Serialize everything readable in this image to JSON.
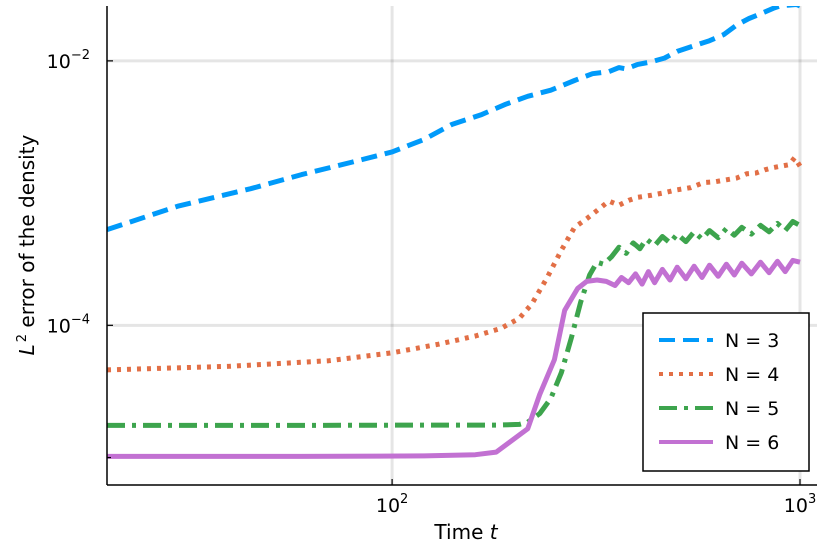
{
  "chart_data": {
    "type": "line",
    "xlabel": {
      "text": "Time ",
      "var": "t"
    },
    "ylabel": {
      "var": "L",
      "sup": "2",
      "text": " error of the density"
    },
    "xscale": "log",
    "yscale": "log",
    "xlim": [
      20,
      1000
    ],
    "ylim": [
      6.2e-06,
      0.026
    ],
    "grid": true,
    "legend_position": "bottom-right",
    "x_ticks": [
      {
        "value": 100,
        "base": "10",
        "exp": "2"
      },
      {
        "value": 1000,
        "base": "10",
        "exp": "3"
      }
    ],
    "y_ticks": [
      {
        "value": 0.0001,
        "base": "10",
        "exp": "−4"
      },
      {
        "value": 0.01,
        "base": "10",
        "exp": "−2"
      }
    ],
    "y_minor_ticks": [
      1e-05
    ],
    "series": [
      {
        "name": "N = 3",
        "color": "#009AFA",
        "style": "dashed",
        "points": [
          [
            20,
            0.00053
          ],
          [
            30,
            0.0008
          ],
          [
            45,
            0.00108
          ],
          [
            60,
            0.00138
          ],
          [
            80,
            0.00172
          ],
          [
            100,
            0.00205
          ],
          [
            120,
            0.00255
          ],
          [
            140,
            0.0033
          ],
          [
            165,
            0.0039
          ],
          [
            190,
            0.0047
          ],
          [
            215,
            0.0054
          ],
          [
            245,
            0.006
          ],
          [
            280,
            0.0071
          ],
          [
            310,
            0.008
          ],
          [
            340,
            0.0083
          ],
          [
            360,
            0.0089
          ],
          [
            375,
            0.0087
          ],
          [
            400,
            0.0094
          ],
          [
            430,
            0.0098
          ],
          [
            465,
            0.0105
          ],
          [
            500,
            0.0118
          ],
          [
            550,
            0.013
          ],
          [
            600,
            0.0142
          ],
          [
            650,
            0.0158
          ],
          [
            700,
            0.0187
          ],
          [
            750,
            0.0209
          ],
          [
            800,
            0.0227
          ],
          [
            860,
            0.025
          ],
          [
            900,
            0.0262
          ],
          [
            940,
            0.0264
          ],
          [
            980,
            0.0267
          ],
          [
            1000,
            0.026
          ]
        ]
      },
      {
        "name": "N = 4",
        "color": "#E26F46",
        "style": "dotted",
        "points": [
          [
            20,
            4.6e-05
          ],
          [
            40,
            4.9e-05
          ],
          [
            70,
            5.4e-05
          ],
          [
            100,
            6.2e-05
          ],
          [
            130,
            7.2e-05
          ],
          [
            160,
            8.3e-05
          ],
          [
            185,
            9.5e-05
          ],
          [
            205,
            0.000113
          ],
          [
            220,
            0.000145
          ],
          [
            240,
            0.00023
          ],
          [
            260,
            0.00037
          ],
          [
            280,
            0.00055
          ],
          [
            300,
            0.00064
          ],
          [
            320,
            0.00075
          ],
          [
            340,
            0.00087
          ],
          [
            360,
            0.00081
          ],
          [
            380,
            0.00088
          ],
          [
            400,
            0.00093
          ],
          [
            430,
            0.00096
          ],
          [
            460,
            0.001
          ],
          [
            500,
            0.00106
          ],
          [
            540,
            0.0011
          ],
          [
            580,
            0.0012
          ],
          [
            620,
            0.00122
          ],
          [
            660,
            0.00126
          ],
          [
            700,
            0.0013
          ],
          [
            740,
            0.0014
          ],
          [
            780,
            0.00142
          ],
          [
            820,
            0.0015
          ],
          [
            860,
            0.00156
          ],
          [
            900,
            0.0016
          ],
          [
            940,
            0.00164
          ],
          [
            970,
            0.00185
          ],
          [
            1000,
            0.0016
          ]
        ]
      },
      {
        "name": "N = 5",
        "color": "#3DA44D",
        "style": "dashdot",
        "points": [
          [
            20,
            1.75e-05
          ],
          [
            60,
            1.75e-05
          ],
          [
            120,
            1.76e-05
          ],
          [
            180,
            1.76e-05
          ],
          [
            205,
            1.78e-05
          ],
          [
            215,
            1.85e-05
          ],
          [
            230,
            2.15e-05
          ],
          [
            245,
            2.8e-05
          ],
          [
            260,
            4.4e-05
          ],
          [
            275,
            8e-05
          ],
          [
            290,
            0.00015
          ],
          [
            305,
            0.00024
          ],
          [
            318,
            0.0003
          ],
          [
            330,
            0.00029
          ],
          [
            345,
            0.00033
          ],
          [
            360,
            0.00039
          ],
          [
            375,
            0.00035
          ],
          [
            390,
            0.00042
          ],
          [
            405,
            0.00038
          ],
          [
            420,
            0.00045
          ],
          [
            440,
            0.0004
          ],
          [
            460,
            0.00047
          ],
          [
            480,
            0.00042
          ],
          [
            500,
            0.00049
          ],
          [
            525,
            0.00043
          ],
          [
            550,
            0.00051
          ],
          [
            575,
            0.00045
          ],
          [
            600,
            0.00052
          ],
          [
            630,
            0.00046
          ],
          [
            660,
            0.00054
          ],
          [
            690,
            0.00048
          ],
          [
            720,
            0.00055
          ],
          [
            760,
            0.00049
          ],
          [
            800,
            0.00057
          ],
          [
            840,
            0.00051
          ],
          [
            880,
            0.00059
          ],
          [
            920,
            0.00052
          ],
          [
            960,
            0.00061
          ],
          [
            1000,
            0.00057
          ]
        ]
      },
      {
        "name": "N = 6",
        "color": "#C271D2",
        "style": "solid",
        "points": [
          [
            20,
            1.02e-05
          ],
          [
            60,
            1.02e-05
          ],
          [
            120,
            1.03e-05
          ],
          [
            160,
            1.05e-05
          ],
          [
            180,
            1.1e-05
          ],
          [
            215,
            1.65e-05
          ],
          [
            230,
            3e-05
          ],
          [
            250,
            5.5e-05
          ],
          [
            265,
            0.00013
          ],
          [
            285,
            0.00019
          ],
          [
            300,
            0.000215
          ],
          [
            318,
            0.00022
          ],
          [
            335,
            0.000215
          ],
          [
            352,
            0.0002
          ],
          [
            365,
            0.00023
          ],
          [
            380,
            0.00021
          ],
          [
            395,
            0.000245
          ],
          [
            410,
            0.000205
          ],
          [
            425,
            0.000255
          ],
          [
            440,
            0.00021
          ],
          [
            460,
            0.000265
          ],
          [
            480,
            0.00022
          ],
          [
            500,
            0.000275
          ],
          [
            525,
            0.000225
          ],
          [
            550,
            0.00028
          ],
          [
            575,
            0.00023
          ],
          [
            600,
            0.000285
          ],
          [
            630,
            0.000235
          ],
          [
            660,
            0.00029
          ],
          [
            690,
            0.00024
          ],
          [
            720,
            0.000295
          ],
          [
            760,
            0.000245
          ],
          [
            800,
            0.0003
          ],
          [
            840,
            0.00025
          ],
          [
            880,
            0.000305
          ],
          [
            920,
            0.000255
          ],
          [
            960,
            0.00031
          ],
          [
            1000,
            0.0003
          ]
        ]
      }
    ]
  }
}
